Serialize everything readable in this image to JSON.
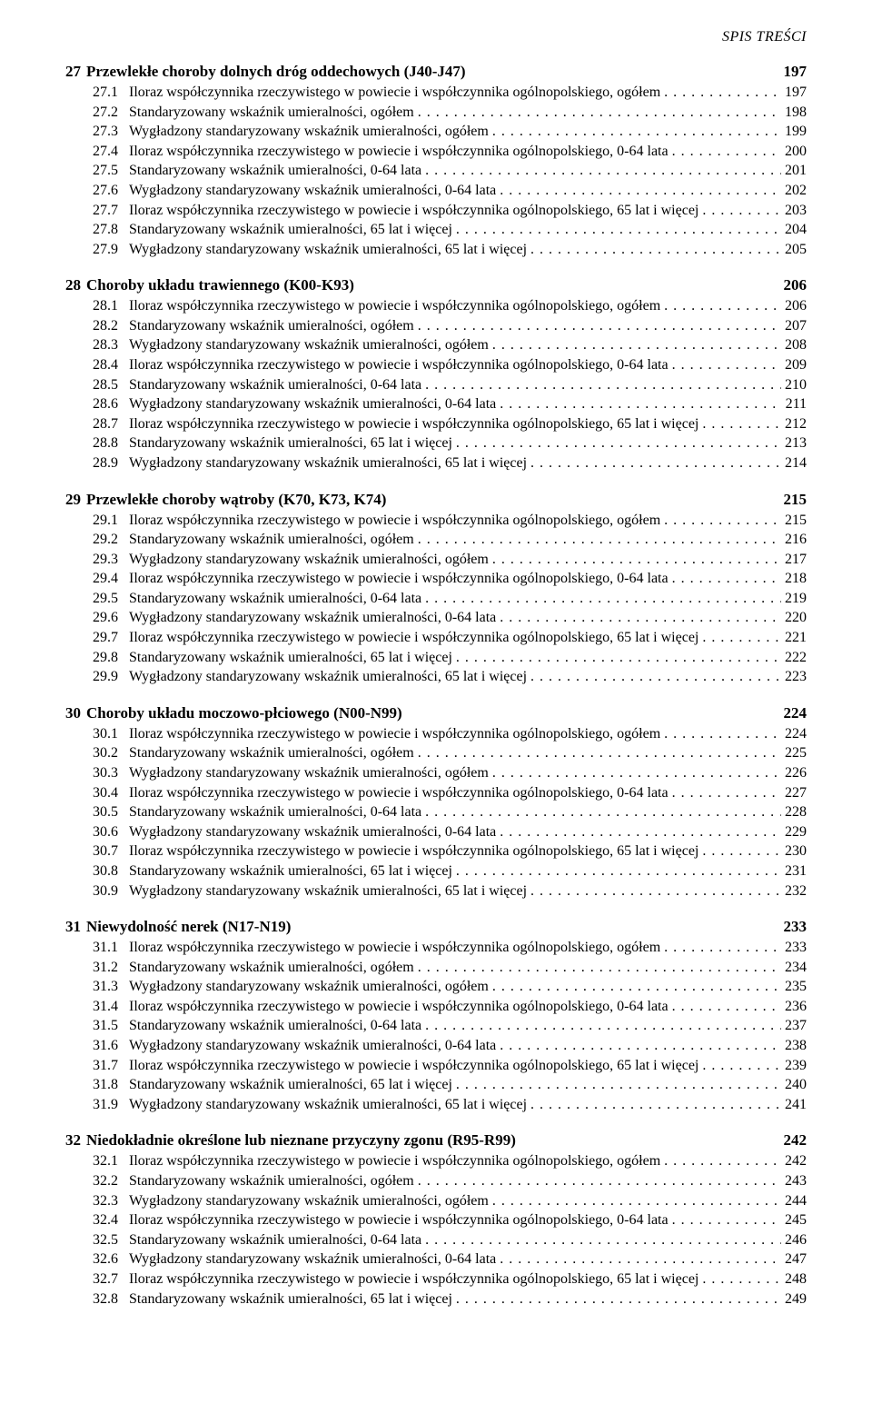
{
  "running_head": "SPIS TREŚCI",
  "chapters": [
    {
      "num": "27",
      "title": "Przewlekłe choroby dolnych dróg oddechowych (J40-J47)",
      "page": "197",
      "entries": [
        {
          "num": "27.1",
          "title": "Iloraz współczynnika rzeczywistego w powiecie i współczynnika ogólnopolskiego, ogółem",
          "page": "197"
        },
        {
          "num": "27.2",
          "title": "Standaryzowany wskaźnik umieralności, ogółem",
          "page": "198"
        },
        {
          "num": "27.3",
          "title": "Wygładzony standaryzowany wskaźnik umieralności, ogółem",
          "page": "199"
        },
        {
          "num": "27.4",
          "title": "Iloraz współczynnika rzeczywistego w powiecie i współczynnika ogólnopolskiego, 0-64 lata",
          "page": "200"
        },
        {
          "num": "27.5",
          "title": "Standaryzowany wskaźnik umieralności, 0-64 lata",
          "page": "201"
        },
        {
          "num": "27.6",
          "title": "Wygładzony standaryzowany wskaźnik umieralności, 0-64 lata",
          "page": "202"
        },
        {
          "num": "27.7",
          "title": "Iloraz współczynnika rzeczywistego w powiecie i współczynnika ogólnopolskiego, 65 lat i więcej",
          "page": "203"
        },
        {
          "num": "27.8",
          "title": "Standaryzowany wskaźnik umieralności, 65 lat i więcej",
          "page": "204"
        },
        {
          "num": "27.9",
          "title": "Wygładzony standaryzowany wskaźnik umieralności, 65 lat i więcej",
          "page": "205"
        }
      ]
    },
    {
      "num": "28",
      "title": "Choroby układu trawiennego (K00-K93)",
      "page": "206",
      "entries": [
        {
          "num": "28.1",
          "title": "Iloraz współczynnika rzeczywistego w powiecie i współczynnika ogólnopolskiego, ogółem",
          "page": "206"
        },
        {
          "num": "28.2",
          "title": "Standaryzowany wskaźnik umieralności, ogółem",
          "page": "207"
        },
        {
          "num": "28.3",
          "title": "Wygładzony standaryzowany wskaźnik umieralności, ogółem",
          "page": "208"
        },
        {
          "num": "28.4",
          "title": "Iloraz współczynnika rzeczywistego w powiecie i współczynnika ogólnopolskiego, 0-64 lata",
          "page": "209"
        },
        {
          "num": "28.5",
          "title": "Standaryzowany wskaźnik umieralności, 0-64 lata",
          "page": "210"
        },
        {
          "num": "28.6",
          "title": "Wygładzony standaryzowany wskaźnik umieralności, 0-64 lata",
          "page": "211"
        },
        {
          "num": "28.7",
          "title": "Iloraz współczynnika rzeczywistego w powiecie i współczynnika ogólnopolskiego, 65 lat i więcej",
          "page": "212"
        },
        {
          "num": "28.8",
          "title": "Standaryzowany wskaźnik umieralności, 65 lat i więcej",
          "page": "213"
        },
        {
          "num": "28.9",
          "title": "Wygładzony standaryzowany wskaźnik umieralności, 65 lat i więcej",
          "page": "214"
        }
      ]
    },
    {
      "num": "29",
      "title": "Przewlekłe choroby wątroby (K70, K73, K74)",
      "page": "215",
      "entries": [
        {
          "num": "29.1",
          "title": "Iloraz współczynnika rzeczywistego w powiecie i współczynnika ogólnopolskiego, ogółem",
          "page": "215"
        },
        {
          "num": "29.2",
          "title": "Standaryzowany wskaźnik umieralności, ogółem",
          "page": "216"
        },
        {
          "num": "29.3",
          "title": "Wygładzony standaryzowany wskaźnik umieralności, ogółem",
          "page": "217"
        },
        {
          "num": "29.4",
          "title": "Iloraz współczynnika rzeczywistego w powiecie i współczynnika ogólnopolskiego, 0-64 lata",
          "page": "218"
        },
        {
          "num": "29.5",
          "title": "Standaryzowany wskaźnik umieralności, 0-64 lata",
          "page": "219"
        },
        {
          "num": "29.6",
          "title": "Wygładzony standaryzowany wskaźnik umieralności, 0-64 lata",
          "page": "220"
        },
        {
          "num": "29.7",
          "title": "Iloraz współczynnika rzeczywistego w powiecie i współczynnika ogólnopolskiego, 65 lat i więcej",
          "page": "221"
        },
        {
          "num": "29.8",
          "title": "Standaryzowany wskaźnik umieralności, 65 lat i więcej",
          "page": "222"
        },
        {
          "num": "29.9",
          "title": "Wygładzony standaryzowany wskaźnik umieralności, 65 lat i więcej",
          "page": "223"
        }
      ]
    },
    {
      "num": "30",
      "title": "Choroby układu moczowo-płciowego (N00-N99)",
      "page": "224",
      "entries": [
        {
          "num": "30.1",
          "title": "Iloraz współczynnika rzeczywistego w powiecie i współczynnika ogólnopolskiego, ogółem",
          "page": "224"
        },
        {
          "num": "30.2",
          "title": "Standaryzowany wskaźnik umieralności, ogółem",
          "page": "225"
        },
        {
          "num": "30.3",
          "title": "Wygładzony standaryzowany wskaźnik umieralności, ogółem",
          "page": "226"
        },
        {
          "num": "30.4",
          "title": "Iloraz współczynnika rzeczywistego w powiecie i współczynnika ogólnopolskiego, 0-64 lata",
          "page": "227"
        },
        {
          "num": "30.5",
          "title": "Standaryzowany wskaźnik umieralności, 0-64 lata",
          "page": "228"
        },
        {
          "num": "30.6",
          "title": "Wygładzony standaryzowany wskaźnik umieralności, 0-64 lata",
          "page": "229"
        },
        {
          "num": "30.7",
          "title": "Iloraz współczynnika rzeczywistego w powiecie i współczynnika ogólnopolskiego, 65 lat i więcej",
          "page": "230"
        },
        {
          "num": "30.8",
          "title": "Standaryzowany wskaźnik umieralności, 65 lat i więcej",
          "page": "231"
        },
        {
          "num": "30.9",
          "title": "Wygładzony standaryzowany wskaźnik umieralności, 65 lat i więcej",
          "page": "232"
        }
      ]
    },
    {
      "num": "31",
      "title": "Niewydolność nerek (N17-N19)",
      "page": "233",
      "entries": [
        {
          "num": "31.1",
          "title": "Iloraz współczynnika rzeczywistego w powiecie i współczynnika ogólnopolskiego, ogółem",
          "page": "233"
        },
        {
          "num": "31.2",
          "title": "Standaryzowany wskaźnik umieralności, ogółem",
          "page": "234"
        },
        {
          "num": "31.3",
          "title": "Wygładzony standaryzowany wskaźnik umieralności, ogółem",
          "page": "235"
        },
        {
          "num": "31.4",
          "title": "Iloraz współczynnika rzeczywistego w powiecie i współczynnika ogólnopolskiego, 0-64 lata",
          "page": "236"
        },
        {
          "num": "31.5",
          "title": "Standaryzowany wskaźnik umieralności, 0-64 lata",
          "page": "237"
        },
        {
          "num": "31.6",
          "title": "Wygładzony standaryzowany wskaźnik umieralności, 0-64 lata",
          "page": "238"
        },
        {
          "num": "31.7",
          "title": "Iloraz współczynnika rzeczywistego w powiecie i współczynnika ogólnopolskiego, 65 lat i więcej",
          "page": "239"
        },
        {
          "num": "31.8",
          "title": "Standaryzowany wskaźnik umieralności, 65 lat i więcej",
          "page": "240"
        },
        {
          "num": "31.9",
          "title": "Wygładzony standaryzowany wskaźnik umieralności, 65 lat i więcej",
          "page": "241"
        }
      ]
    },
    {
      "num": "32",
      "title": "Niedokładnie określone lub nieznane przyczyny zgonu (R95-R99)",
      "page": "242",
      "entries": [
        {
          "num": "32.1",
          "title": "Iloraz współczynnika rzeczywistego w powiecie i współczynnika ogólnopolskiego, ogółem",
          "page": "242"
        },
        {
          "num": "32.2",
          "title": "Standaryzowany wskaźnik umieralności, ogółem",
          "page": "243"
        },
        {
          "num": "32.3",
          "title": "Wygładzony standaryzowany wskaźnik umieralności, ogółem",
          "page": "244"
        },
        {
          "num": "32.4",
          "title": "Iloraz współczynnika rzeczywistego w powiecie i współczynnika ogólnopolskiego, 0-64 lata",
          "page": "245"
        },
        {
          "num": "32.5",
          "title": "Standaryzowany wskaźnik umieralności, 0-64 lata",
          "page": "246"
        },
        {
          "num": "32.6",
          "title": "Wygładzony standaryzowany wskaźnik umieralności, 0-64 lata",
          "page": "247"
        },
        {
          "num": "32.7",
          "title": "Iloraz współczynnika rzeczywistego w powiecie i współczynnika ogólnopolskiego, 65 lat i więcej",
          "page": "248"
        },
        {
          "num": "32.8",
          "title": "Standaryzowany wskaźnik umieralności, 65 lat i więcej",
          "page": "249"
        }
      ]
    }
  ]
}
